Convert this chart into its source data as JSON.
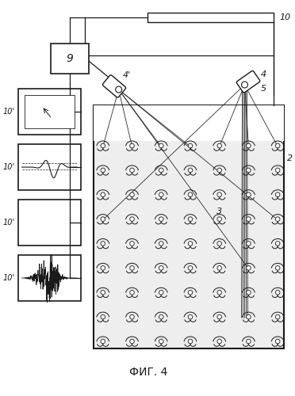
{
  "title": "ФИГ. 4",
  "bg_color": "#ffffff",
  "line_color": "#1a1a1a",
  "grid_rows": 9,
  "grid_cols": 7,
  "antenna_label": "10",
  "controller_label": "9",
  "camera_left_label": "4'",
  "camera_right_label": "4",
  "beam_label": "5",
  "devices_label": "2",
  "lines_label": "3"
}
